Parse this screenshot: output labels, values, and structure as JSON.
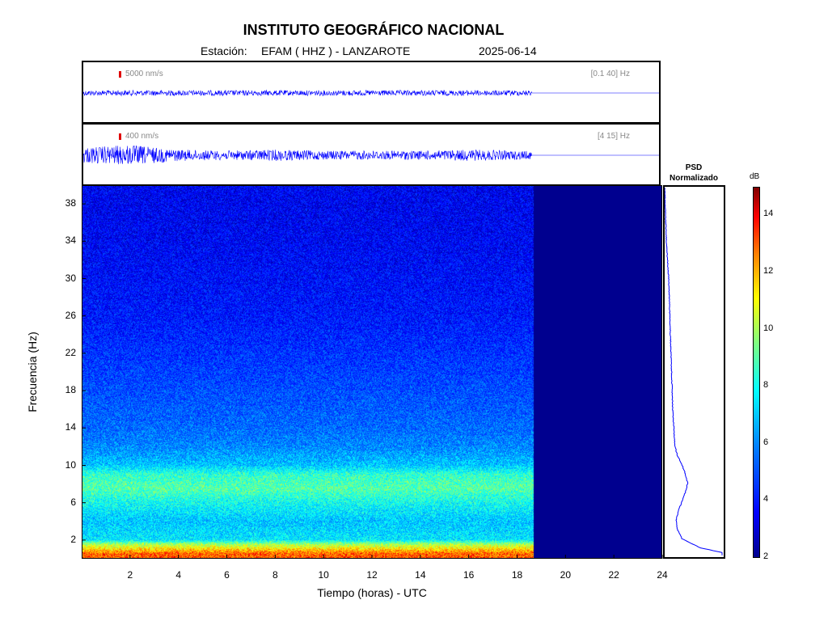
{
  "header": {
    "title": "INSTITUTO GEOGRÁFICO NACIONAL",
    "station_prefix": "Estación:",
    "station": "EFAM ( HHZ ) - LANZAROTE",
    "date": "2025-06-14"
  },
  "traces": [
    {
      "scale_label": "5000 nm/s",
      "band_label": "[0.1 40]  Hz"
    },
    {
      "scale_label": "400 nm/s",
      "band_label": "[4 15]  Hz"
    }
  ],
  "psd": {
    "title_line1": "PSD",
    "title_line2": "Normalizado"
  },
  "colorbar": {
    "unit": "dB",
    "ticks": [
      "2",
      "4",
      "6",
      "8",
      "10",
      "12",
      "14"
    ],
    "min": 2,
    "max": 15
  },
  "colors": {
    "trace": "#0000ff",
    "background_spectrum": "#00008f"
  },
  "chart_data": [
    {
      "type": "line",
      "title": "",
      "description": "Velocity seismogram, 0.1-40 Hz",
      "x": [
        0,
        18.7,
        24
      ],
      "data_end_hour": 18.7,
      "relative_amplitude": [
        0.12,
        0.12,
        0
      ],
      "xlim": [
        0,
        24
      ]
    },
    {
      "type": "line",
      "title": "",
      "description": "Velocity seismogram, 4-15 Hz",
      "x": [
        0,
        2,
        4,
        6,
        8,
        10,
        12,
        14,
        16,
        18.7,
        24
      ],
      "data_end_hour": 18.7,
      "relative_amplitude": [
        0.35,
        0.45,
        0.25,
        0.2,
        0.25,
        0.2,
        0.2,
        0.2,
        0.25,
        0.18,
        0
      ],
      "xlim": [
        0,
        24
      ]
    },
    {
      "type": "heatmap",
      "title": "",
      "xlabel": "Tiempo (horas) - UTC",
      "ylabel": "Frecuencia  (Hz)",
      "xlim": [
        0,
        24
      ],
      "ylim": [
        0,
        40
      ],
      "xticks": [
        2,
        4,
        6,
        8,
        10,
        12,
        14,
        16,
        18,
        20,
        22,
        24
      ],
      "yticks": [
        2,
        6,
        10,
        14,
        18,
        22,
        26,
        30,
        34,
        38
      ],
      "data_end_hour": 18.7,
      "frequency_hz": [
        0.5,
        1.5,
        2,
        4,
        6,
        7.5,
        9,
        10,
        12,
        14,
        18,
        22,
        26,
        30,
        34,
        38
      ],
      "mean_db": [
        13,
        10,
        7.5,
        7,
        8,
        9,
        8.5,
        7,
        6,
        5.5,
        5,
        4.5,
        4,
        3.8,
        3.6,
        3.5
      ]
    },
    {
      "type": "line",
      "title": "PSD Normalizado",
      "frequency_hz": [
        0.5,
        1,
        2,
        3,
        4,
        5,
        6,
        7,
        8,
        9,
        10,
        11,
        12,
        14,
        16,
        18,
        20,
        22,
        24,
        26,
        28,
        30,
        32,
        34,
        36,
        38,
        40
      ],
      "normalized_psd": [
        1.0,
        0.62,
        0.3,
        0.22,
        0.2,
        0.24,
        0.3,
        0.36,
        0.4,
        0.36,
        0.3,
        0.22,
        0.18,
        0.16,
        0.14,
        0.13,
        0.12,
        0.11,
        0.1,
        0.09,
        0.08,
        0.07,
        0.05,
        0.03,
        0.02,
        0.01,
        0.0
      ],
      "ylim": [
        0,
        40
      ]
    }
  ]
}
